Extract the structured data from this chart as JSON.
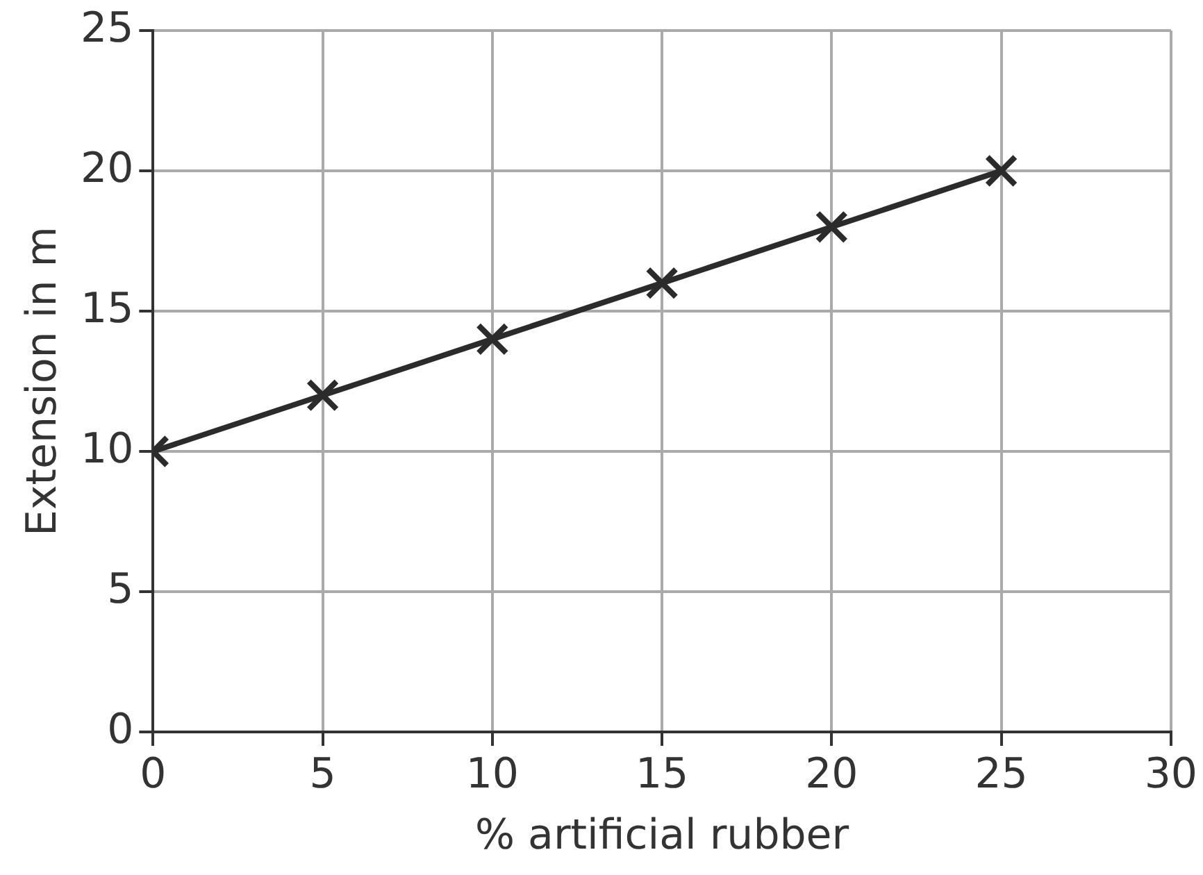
{
  "chart_data": {
    "type": "line",
    "xlabel": "% artificial rubber",
    "ylabel": "Extension in m",
    "x": [
      0,
      5,
      10,
      15,
      20,
      25
    ],
    "series": [
      {
        "color": "#2b2b2b",
        "values": [
          10,
          12,
          14,
          16,
          18,
          20
        ]
      }
    ],
    "xlim": [
      0,
      30
    ],
    "xticks": [
      0,
      5,
      10,
      15,
      20,
      25,
      30
    ],
    "ylim": [
      0,
      25
    ],
    "yticks": [
      0,
      5,
      10,
      15,
      20,
      25
    ],
    "grid": true,
    "legend": false,
    "marker": "cross",
    "line_style": "solid"
  }
}
